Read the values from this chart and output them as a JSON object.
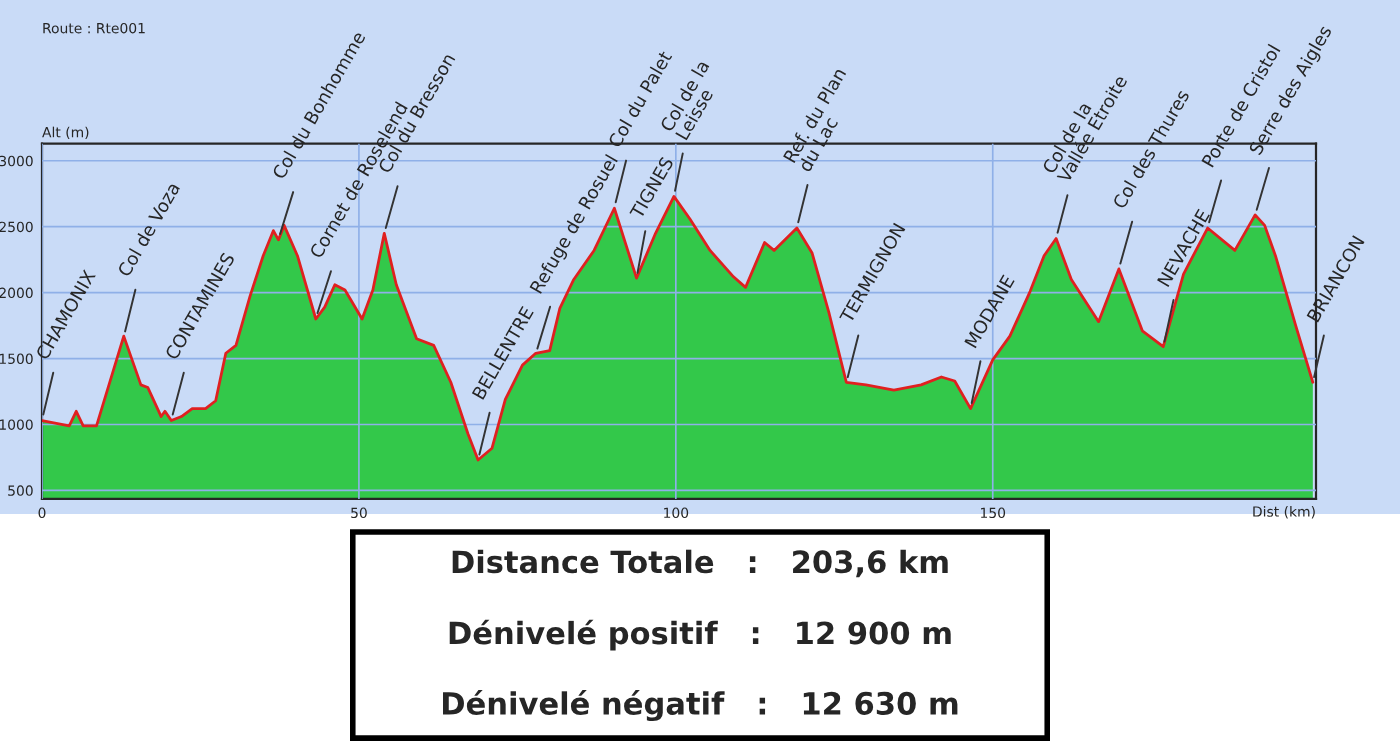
{
  "chart_data": {
    "type": "area",
    "subtitle": "Route : Rte001",
    "xlabel": "Dist (km)",
    "ylabel": "Alt (m)",
    "x": [
      0,
      4.3,
      5.4,
      6.5,
      8.6,
      12.9,
      15.6,
      16.7,
      18.8,
      19.4,
      20.4,
      22,
      23.7,
      25.8,
      27.4,
      29,
      30.6,
      32.8,
      34.9,
      36.5,
      37.3,
      38.2,
      40.3,
      43.2,
      44.6,
      46.2,
      47.8,
      50.5,
      52.2,
      54,
      55.9,
      59.1,
      61.8,
      64.5,
      67.2,
      68.8,
      71,
      73.1,
      75.8,
      77.9,
      80.1,
      81.7,
      83.9,
      87.1,
      90.3,
      93.8,
      96.8,
      99.7,
      102.2,
      105.4,
      109.1,
      111,
      114,
      115.5,
      119.1,
      121.5,
      124.2,
      126.9,
      130,
      134.4,
      138.7,
      141.9,
      144,
      146.5,
      150,
      152.7,
      155.9,
      158.1,
      160,
      162.4,
      166.7,
      169.9,
      173.6,
      176.9,
      180.1,
      183.9,
      188.2,
      191.4,
      192.9,
      194.6,
      197.8,
      200.5
    ],
    "series": [
      {
        "color": "#33c84a",
        "values": [
          1030,
          990,
          1100,
          990,
          990,
          1670,
          1300,
          1280,
          1060,
          1100,
          1030,
          1060,
          1120,
          1120,
          1180,
          1540,
          1600,
          1970,
          2280,
          2470,
          2400,
          2510,
          2280,
          1800,
          1890,
          2060,
          2020,
          1800,
          2020,
          2450,
          2060,
          1650,
          1600,
          1320,
          930,
          730,
          820,
          1190,
          1450,
          1540,
          1560,
          1880,
          2100,
          2320,
          2640,
          2110,
          2450,
          2730,
          2560,
          2320,
          2120,
          2040,
          2380,
          2320,
          2490,
          2300,
          1840,
          1320,
          1300,
          1260,
          1300,
          1360,
          1330,
          1120,
          1490,
          1670,
          2010,
          2280,
          2410,
          2100,
          1780,
          2180,
          1710,
          1590,
          2140,
          2490,
          2320,
          2590,
          2510,
          2280,
          1750,
          1320
        ]
      },
      {
        "type": "line",
        "color": "#e02020",
        "values": [
          1030,
          990,
          1100,
          990,
          990,
          1670,
          1300,
          1280,
          1060,
          1100,
          1030,
          1060,
          1120,
          1120,
          1180,
          1540,
          1600,
          1970,
          2280,
          2470,
          2400,
          2510,
          2280,
          1800,
          1890,
          2060,
          2020,
          1800,
          2020,
          2450,
          2060,
          1650,
          1600,
          1320,
          930,
          730,
          820,
          1190,
          1450,
          1540,
          1560,
          1880,
          2100,
          2320,
          2640,
          2110,
          2450,
          2730,
          2560,
          2320,
          2120,
          2040,
          2380,
          2320,
          2490,
          2300,
          1840,
          1320,
          1300,
          1260,
          1300,
          1360,
          1330,
          1120,
          1490,
          1670,
          2010,
          2280,
          2410,
          2100,
          1780,
          2180,
          1710,
          1590,
          2140,
          2490,
          2320,
          2590,
          2510,
          2280,
          1750,
          1320
        ]
      }
    ],
    "xlim": [
      0,
      201
    ],
    "ylim": [
      435,
      3130
    ],
    "xticks": [
      0,
      50,
      100,
      150
    ],
    "yticks": [
      500,
      1000,
      1500,
      2000,
      2500,
      3000
    ],
    "grid": true,
    "legend": false,
    "annotations": [
      {
        "text": "CHAMONIX",
        "x": 0,
        "y": 1035
      },
      {
        "text": "Col de Voza",
        "x": 12.9,
        "y": 1665
      },
      {
        "text": "CONTAMINES",
        "x": 20.4,
        "y": 1035
      },
      {
        "text": "Col du Bonhomme",
        "x": 37.3,
        "y": 2405
      },
      {
        "text": "Cornet de Roselend",
        "x": 43.2,
        "y": 1805
      },
      {
        "text": "Col du Bresson",
        "x": 54,
        "y": 2450
      },
      {
        "text": "BELLENTRE",
        "x": 68.8,
        "y": 731
      },
      {
        "text": "Refuge de Rosuel",
        "x": 77.9,
        "y": 1535
      },
      {
        "text": "Col du Palet",
        "x": 90.3,
        "y": 2644
      },
      {
        "text": "TIGNES",
        "x": 93.8,
        "y": 2109
      },
      {
        "text": "Col de la\nLeisse",
        "x": 99.7,
        "y": 2732
      },
      {
        "text": "Ref. du Plan\ndu Lac",
        "x": 119.1,
        "y": 2493
      },
      {
        "text": "TERMIGNON",
        "x": 126.9,
        "y": 1318
      },
      {
        "text": "MODANE",
        "x": 146.5,
        "y": 1122
      },
      {
        "text": "Col de la\nVallée Etroite",
        "x": 160,
        "y": 2414
      },
      {
        "text": "Col des Thures",
        "x": 169.9,
        "y": 2180
      },
      {
        "text": "NEVACHE",
        "x": 176.9,
        "y": 1587
      },
      {
        "text": "Porte de Cristol",
        "x": 183.9,
        "y": 2493
      },
      {
        "text": "Serre des Aigles",
        "x": 191.4,
        "y": 2588
      },
      {
        "text": "BRIANCON",
        "x": 200.5,
        "y": 1318
      },
      "Distance Totale   :   203,6 km",
      "Dénivelé positif   :   12 900 m",
      "Dénivelé négatif   :   12 630 m"
    ]
  }
}
